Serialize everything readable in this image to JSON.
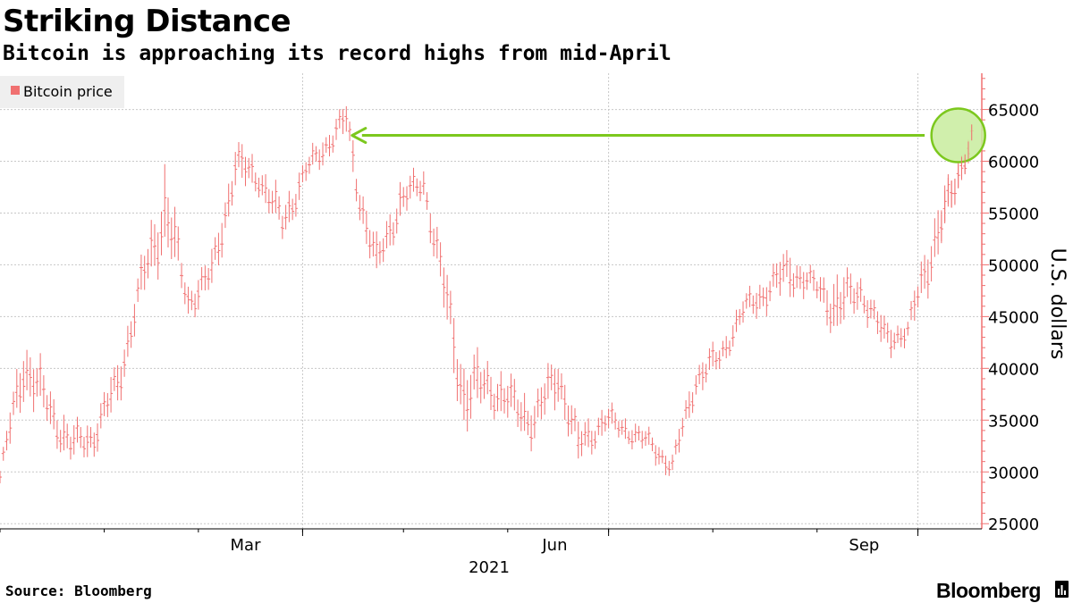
{
  "header": {
    "title": "Striking Distance",
    "subtitle": "Bitcoin is approaching its record highs from mid-April"
  },
  "footer": {
    "source": "Source: Bloomberg",
    "brand": "Bloomberg"
  },
  "colors": {
    "series": "#f07070",
    "annotation": "#7cc81e",
    "annotation_fill": "#c8ec9e",
    "grid": "#c8c8c8",
    "axis": "#f07070",
    "legend_bg": "#efefef"
  },
  "chart_data": {
    "type": "line",
    "style": "ohlc-bars",
    "series": [
      {
        "name": "Bitcoin price",
        "x": [
          "2021-01-01",
          "2021-01-08",
          "2021-01-15",
          "2021-01-22",
          "2021-01-29",
          "2021-02-05",
          "2021-02-12",
          "2021-02-19",
          "2021-02-26",
          "2021-03-05",
          "2021-03-12",
          "2021-03-19",
          "2021-03-26",
          "2021-04-02",
          "2021-04-09",
          "2021-04-14",
          "2021-04-18",
          "2021-04-23",
          "2021-04-30",
          "2021-05-07",
          "2021-05-12",
          "2021-05-19",
          "2021-05-26",
          "2021-06-02",
          "2021-06-09",
          "2021-06-16",
          "2021-06-22",
          "2021-06-30",
          "2021-07-07",
          "2021-07-14",
          "2021-07-20",
          "2021-07-27",
          "2021-08-03",
          "2021-08-10",
          "2021-08-17",
          "2021-08-24",
          "2021-08-31",
          "2021-09-07",
          "2021-09-14",
          "2021-09-21",
          "2021-09-28",
          "2021-10-05",
          "2021-10-12",
          "2021-10-17"
        ],
        "values": [
          29500,
          40500,
          36500,
          32500,
          33500,
          38500,
          48000,
          55500,
          46500,
          49000,
          59500,
          58500,
          54000,
          59000,
          62000,
          64000,
          56500,
          50000,
          56000,
          58000,
          49500,
          37500,
          38500,
          36500,
          35000,
          39500,
          32500,
          35000,
          34000,
          32500,
          30500,
          39000,
          41000,
          45500,
          47500,
          49500,
          48000,
          46000,
          47500,
          43000,
          43500,
          51500,
          57500,
          62500
        ],
        "low": [
          28500,
          33000,
          33500,
          29500,
          31000,
          33500,
          45000,
          46000,
          44500,
          46000,
          55000,
          56000,
          51000,
          57000,
          59500,
          60000,
          52000,
          47000,
          53000,
          55500,
          44500,
          30500,
          34000,
          33000,
          31000,
          34000,
          29000,
          32500,
          32500,
          31000,
          29500,
          35000,
          38500,
          43000,
          45000,
          46000,
          46000,
          43000,
          44000,
          40000,
          41500,
          47000,
          54000,
          59500
        ],
        "high": [
          31000,
          42000,
          40000,
          35000,
          36000,
          40000,
          51000,
          58000,
          49000,
          52000,
          61500,
          60500,
          57000,
          61000,
          63500,
          64800,
          58000,
          53000,
          58500,
          59500,
          52000,
          41000,
          40500,
          39500,
          37500,
          41000,
          35000,
          36500,
          36000,
          34500,
          33000,
          40000,
          42500,
          47000,
          50000,
          52500,
          49500,
          52000,
          48500,
          45000,
          45000,
          55500,
          59500,
          63000
        ]
      }
    ],
    "x_tick_labels": [
      "Mar",
      "Jun",
      "Sep"
    ],
    "x_year_label": "2021",
    "y_ticks": [
      25000,
      30000,
      35000,
      40000,
      45000,
      50000,
      55000,
      60000,
      65000
    ],
    "ylim": [
      24500,
      68500
    ],
    "xlim": [
      "2021-01-01",
      "2021-10-20"
    ],
    "ylabel": "U.S. dollars",
    "xlabel": "",
    "legend": "top-left",
    "grid": true,
    "y_axis_side": "right",
    "annotation": {
      "type": "arrow",
      "from_date": "2021-10-03",
      "to_date": "2021-04-16",
      "level": 62500,
      "highlight": "circle around mid-October 2021 prices"
    }
  }
}
